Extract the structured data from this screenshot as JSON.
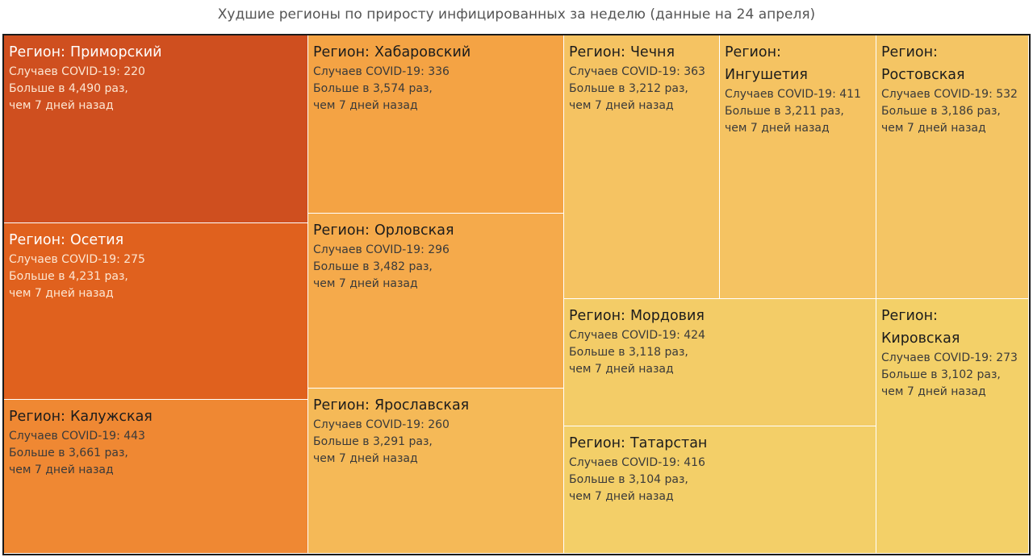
{
  "title": "Худшие регионы по приросту инфицированных за неделю (данные на 24 апреля)",
  "chart_data": {
    "type": "treemap",
    "title": "Худшие регионы по приросту инфицированных за неделю (данные на 24 апреля)",
    "region_label": "Регион:",
    "cases_label": "Случаев COVID-19: ",
    "ratio_prefix": "Больше в ",
    "ratio_suffix": " раз,",
    "ratio_tail": "чем 7 дней назад",
    "items": [
      {
        "region": "Приморский",
        "cases": 220,
        "ratio": "4,490",
        "color": "#cf4f1f",
        "text": "dark"
      },
      {
        "region": "Осетия",
        "cases": 275,
        "ratio": "4,231",
        "color": "#e0611e",
        "text": "dark"
      },
      {
        "region": "Калужская",
        "cases": 443,
        "ratio": "3,661",
        "color": "#ef8833",
        "text": "light"
      },
      {
        "region": "Хабаровский",
        "cases": 336,
        "ratio": "3,574",
        "color": "#f4a344",
        "text": "light"
      },
      {
        "region": "Орловская",
        "cases": 296,
        "ratio": "3,482",
        "color": "#f5aa4b",
        "text": "light"
      },
      {
        "region": "Ярославская",
        "cases": 260,
        "ratio": "3,291",
        "color": "#f5b957",
        "text": "light"
      },
      {
        "region": "Чечня",
        "cases": 363,
        "ratio": "3,212",
        "color": "#f5c362",
        "text": "light"
      },
      {
        "region": "Ингушетия",
        "cases": 411,
        "ratio": "3,211",
        "color": "#f5c362",
        "text": "light"
      },
      {
        "region": "Ростовская",
        "cases": 532,
        "ratio": "3,186",
        "color": "#f4c564",
        "text": "light"
      },
      {
        "region": "Мордовия",
        "cases": 424,
        "ratio": "3,118",
        "color": "#f3cc67",
        "text": "light"
      },
      {
        "region": "Татарстан",
        "cases": 416,
        "ratio": "3,104",
        "color": "#f3cf68",
        "text": "light"
      },
      {
        "region": "Кировская",
        "cases": 273,
        "ratio": "3,102",
        "color": "#f3d068",
        "text": "light"
      }
    ]
  }
}
